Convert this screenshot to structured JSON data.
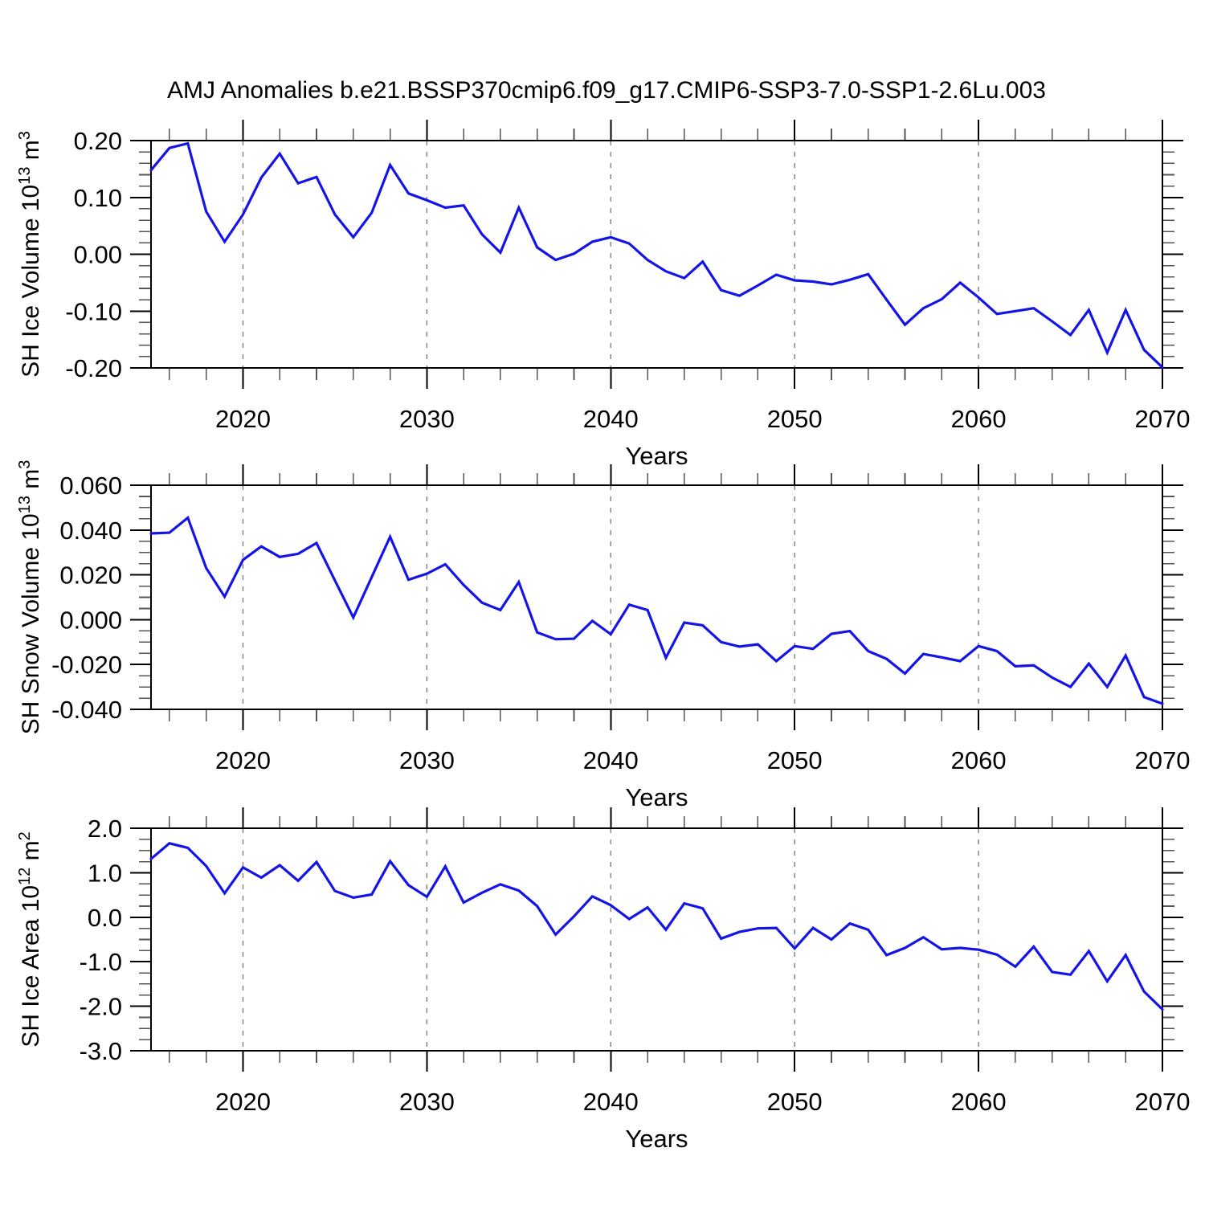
{
  "figure": {
    "title": "AMJ Anomalies b.e21.BSSP370cmip6.f09_g17.CMIP6-SSP3-7.0-SSP1-2.6Lu.003",
    "background_color": "#ffffff",
    "line_color": "#1414e6",
    "axis_color": "#000000",
    "grid_color": "#777777",
    "minor_tick_color": "#555555"
  },
  "chart_data": [
    {
      "type": "line",
      "name": "sh-ice-volume",
      "ylabel": "SH Ice Volume 10^13 m^3",
      "ylabel_rich": [
        {
          "t": "SH Ice Volume 10"
        },
        {
          "t": "13",
          "sup": true
        },
        {
          "t": " m"
        },
        {
          "t": "3",
          "sup": true
        }
      ],
      "xlabel": "Years",
      "xlim": [
        2015,
        2070
      ],
      "ylim": [
        -0.2,
        0.2
      ],
      "xticks": [
        2020,
        2030,
        2040,
        2050,
        2060,
        2070
      ],
      "xtick_labels": [
        "2020",
        "2030",
        "2040",
        "2050",
        "2060",
        "2070"
      ],
      "xminor_step": 2,
      "yticks": [
        0.2,
        0.1,
        0.0,
        -0.1,
        -0.2
      ],
      "ytick_labels": [
        "0.20",
        "0.10",
        "0.00",
        "-0.10",
        "-0.20"
      ],
      "yminor_step": 0.02,
      "grid": "vertical-dashed",
      "x": [
        2015,
        2016,
        2017,
        2018,
        2019,
        2020,
        2021,
        2022,
        2023,
        2024,
        2025,
        2026,
        2027,
        2028,
        2029,
        2030,
        2031,
        2032,
        2033,
        2034,
        2035,
        2036,
        2037,
        2038,
        2039,
        2040,
        2041,
        2042,
        2043,
        2044,
        2045,
        2046,
        2047,
        2048,
        2049,
        2050,
        2051,
        2052,
        2053,
        2054,
        2055,
        2056,
        2057,
        2058,
        2059,
        2060,
        2061,
        2062,
        2063,
        2064,
        2065,
        2066,
        2067,
        2068,
        2069,
        2070
      ],
      "y": [
        0.148,
        0.187,
        0.195,
        0.075,
        0.022,
        0.07,
        0.135,
        0.177,
        0.125,
        0.136,
        0.07,
        0.03,
        0.073,
        0.157,
        0.107,
        0.095,
        0.082,
        0.086,
        0.035,
        0.003,
        0.082,
        0.012,
        -0.01,
        0.001,
        0.022,
        0.03,
        0.019,
        -0.01,
        -0.03,
        -0.042,
        -0.013,
        -0.063,
        -0.073,
        -0.055,
        -0.036,
        -0.046,
        -0.048,
        -0.053,
        -0.045,
        -0.035,
        -0.08,
        -0.124,
        -0.095,
        -0.079,
        -0.05,
        -0.076,
        -0.105,
        -0.1,
        -0.095,
        -0.118,
        -0.142,
        -0.098,
        -0.173,
        -0.098,
        -0.168,
        -0.199
      ]
    },
    {
      "type": "line",
      "name": "sh-snow-volume",
      "ylabel": "SH Snow Volume 10^13 m^3",
      "ylabel_rich": [
        {
          "t": "SH Snow Volume 10"
        },
        {
          "t": "13",
          "sup": true
        },
        {
          "t": " m"
        },
        {
          "t": "3",
          "sup": true
        }
      ],
      "xlabel": "Years",
      "xlim": [
        2015,
        2070
      ],
      "ylim": [
        -0.04,
        0.06
      ],
      "xticks": [
        2020,
        2030,
        2040,
        2050,
        2060,
        2070
      ],
      "xtick_labels": [
        "2020",
        "2030",
        "2040",
        "2050",
        "2060",
        "2070"
      ],
      "xminor_step": 2,
      "yticks": [
        0.06,
        0.04,
        0.02,
        0.0,
        -0.02,
        -0.04
      ],
      "ytick_labels": [
        "0.060",
        "0.040",
        "0.020",
        "0.000",
        "-0.020",
        "-0.040"
      ],
      "yminor_step": 0.005,
      "grid": "vertical-dashed",
      "x": [
        2015,
        2016,
        2017,
        2018,
        2019,
        2020,
        2021,
        2022,
        2023,
        2024,
        2025,
        2026,
        2027,
        2028,
        2029,
        2030,
        2031,
        2032,
        2033,
        2034,
        2035,
        2036,
        2037,
        2038,
        2039,
        2040,
        2041,
        2042,
        2043,
        2044,
        2045,
        2046,
        2047,
        2048,
        2049,
        2050,
        2051,
        2052,
        2053,
        2054,
        2055,
        2056,
        2057,
        2058,
        2059,
        2060,
        2061,
        2062,
        2063,
        2064,
        2065,
        2066,
        2067,
        2068,
        2069,
        2070
      ],
      "y": [
        0.0385,
        0.0388,
        0.0455,
        0.023,
        0.0103,
        0.0267,
        0.0327,
        0.028,
        0.0294,
        0.0342,
        0.0175,
        0.001,
        0.019,
        0.037,
        0.0178,
        0.0205,
        0.0247,
        0.0155,
        0.0076,
        0.0043,
        0.0168,
        -0.0057,
        -0.0087,
        -0.0085,
        -0.0005,
        -0.0065,
        0.0067,
        0.0043,
        -0.017,
        -0.0013,
        -0.0025,
        -0.01,
        -0.012,
        -0.011,
        -0.0185,
        -0.0118,
        -0.013,
        -0.0063,
        -0.0051,
        -0.014,
        -0.0175,
        -0.024,
        -0.0153,
        -0.0168,
        -0.0185,
        -0.0118,
        -0.014,
        -0.0208,
        -0.0204,
        -0.0258,
        -0.03,
        -0.0196,
        -0.03,
        -0.016,
        -0.0345,
        -0.0375
      ]
    },
    {
      "type": "line",
      "name": "sh-ice-area",
      "ylabel": "SH Ice Area 10^12 m^2",
      "ylabel_rich": [
        {
          "t": "SH Ice Area 10"
        },
        {
          "t": "12",
          "sup": true
        },
        {
          "t": " m"
        },
        {
          "t": "2",
          "sup": true
        }
      ],
      "xlabel": "Years",
      "xlim": [
        2015,
        2070
      ],
      "ylim": [
        -3.0,
        2.0
      ],
      "xticks": [
        2020,
        2030,
        2040,
        2050,
        2060,
        2070
      ],
      "xtick_labels": [
        "2020",
        "2030",
        "2040",
        "2050",
        "2060",
        "2070"
      ],
      "xminor_step": 2,
      "yticks": [
        2.0,
        1.0,
        0.0,
        -1.0,
        -2.0,
        -3.0
      ],
      "ytick_labels": [
        "2.0",
        "1.0",
        "0.0",
        "-1.0",
        "-2.0",
        "-3.0"
      ],
      "yminor_step": 0.25,
      "grid": "vertical-dashed",
      "x": [
        2015,
        2016,
        2017,
        2018,
        2019,
        2020,
        2021,
        2022,
        2023,
        2024,
        2025,
        2026,
        2027,
        2028,
        2029,
        2030,
        2031,
        2032,
        2033,
        2034,
        2035,
        2036,
        2037,
        2038,
        2039,
        2040,
        2041,
        2042,
        2043,
        2044,
        2045,
        2046,
        2047,
        2048,
        2049,
        2050,
        2051,
        2052,
        2053,
        2054,
        2055,
        2056,
        2057,
        2058,
        2059,
        2060,
        2061,
        2062,
        2063,
        2064,
        2065,
        2066,
        2067,
        2068,
        2069,
        2070
      ],
      "y": [
        1.31,
        1.66,
        1.56,
        1.15,
        0.54,
        1.12,
        0.89,
        1.17,
        0.82,
        1.24,
        0.59,
        0.44,
        0.51,
        1.26,
        0.72,
        0.46,
        1.14,
        0.33,
        0.55,
        0.74,
        0.6,
        0.25,
        -0.39,
        0.02,
        0.47,
        0.27,
        -0.04,
        0.22,
        -0.28,
        0.31,
        0.2,
        -0.48,
        -0.33,
        -0.25,
        -0.24,
        -0.7,
        -0.24,
        -0.5,
        -0.14,
        -0.28,
        -0.85,
        -0.69,
        -0.45,
        -0.72,
        -0.69,
        -0.73,
        -0.84,
        -1.11,
        -0.66,
        -1.23,
        -1.29,
        -0.76,
        -1.44,
        -0.85,
        -1.67,
        -2.07
      ]
    }
  ]
}
